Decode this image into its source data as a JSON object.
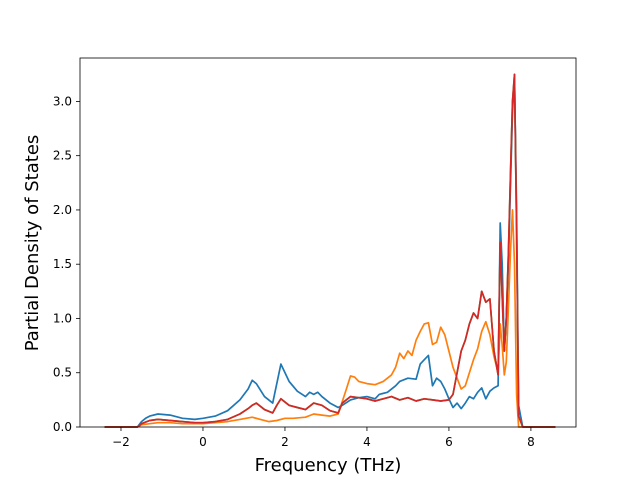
{
  "chart_data": {
    "type": "line",
    "title": "",
    "xlabel": "Frequency (THz)",
    "ylabel": "Partial Density of States",
    "xlim": [
      -3.0,
      9.1
    ],
    "ylim": [
      0.0,
      3.4
    ],
    "xticks": [
      -2,
      0,
      2,
      4,
      6,
      8
    ],
    "xtick_labels": [
      "−2",
      "0",
      "2",
      "4",
      "6",
      "8"
    ],
    "yticks": [
      0.0,
      0.5,
      1.0,
      1.5,
      2.0,
      2.5,
      3.0
    ],
    "ytick_labels": [
      "0.0",
      "0.5",
      "1.0",
      "1.5",
      "2.0",
      "2.5",
      "3.0"
    ],
    "grid": false,
    "legend": "none",
    "series": [
      {
        "color": "#1f77b4",
        "x": [
          -2.4,
          -1.6,
          -1.5,
          -1.4,
          -1.3,
          -1.1,
          -0.8,
          -0.5,
          -0.2,
          0.0,
          0.3,
          0.6,
          0.9,
          1.1,
          1.2,
          1.3,
          1.5,
          1.7,
          1.8,
          1.9,
          2.1,
          2.3,
          2.5,
          2.6,
          2.7,
          2.8,
          2.9,
          3.1,
          3.3,
          3.4,
          3.6,
          3.8,
          4.0,
          4.2,
          4.3,
          4.5,
          4.7,
          4.8,
          5.0,
          5.2,
          5.3,
          5.4,
          5.5,
          5.6,
          5.7,
          5.8,
          5.9,
          6.0,
          6.1,
          6.2,
          6.3,
          6.4,
          6.5,
          6.6,
          6.7,
          6.8,
          6.9,
          7.0,
          7.1,
          7.2,
          7.25,
          7.3,
          7.35,
          7.4,
          7.45,
          7.5,
          7.55,
          7.6,
          7.65,
          7.7,
          7.8,
          8.6
        ],
        "y": [
          0.0,
          0.0,
          0.05,
          0.08,
          0.1,
          0.12,
          0.11,
          0.08,
          0.07,
          0.08,
          0.1,
          0.15,
          0.25,
          0.35,
          0.43,
          0.4,
          0.28,
          0.22,
          0.4,
          0.58,
          0.42,
          0.33,
          0.28,
          0.32,
          0.3,
          0.32,
          0.28,
          0.22,
          0.18,
          0.2,
          0.25,
          0.27,
          0.28,
          0.26,
          0.3,
          0.32,
          0.38,
          0.42,
          0.45,
          0.44,
          0.58,
          0.62,
          0.66,
          0.38,
          0.45,
          0.42,
          0.35,
          0.26,
          0.18,
          0.22,
          0.17,
          0.22,
          0.28,
          0.26,
          0.32,
          0.36,
          0.26,
          0.33,
          0.36,
          0.38,
          1.88,
          1.5,
          0.7,
          1.0,
          1.5,
          2.2,
          2.9,
          3.2,
          2.0,
          0.2,
          0.0,
          0.0
        ]
      },
      {
        "color": "#ff7f0e",
        "x": [
          -2.4,
          -1.6,
          -1.5,
          -1.3,
          -1.1,
          -0.8,
          -0.5,
          -0.2,
          0.0,
          0.3,
          0.6,
          0.9,
          1.2,
          1.4,
          1.6,
          1.8,
          2.0,
          2.2,
          2.5,
          2.7,
          2.9,
          3.1,
          3.3,
          3.5,
          3.6,
          3.7,
          3.8,
          4.0,
          4.2,
          4.4,
          4.6,
          4.7,
          4.8,
          4.9,
          5.0,
          5.1,
          5.2,
          5.3,
          5.4,
          5.5,
          5.6,
          5.7,
          5.8,
          5.9,
          6.0,
          6.1,
          6.2,
          6.3,
          6.4,
          6.5,
          6.6,
          6.7,
          6.8,
          6.9,
          7.0,
          7.1,
          7.2,
          7.25,
          7.3,
          7.35,
          7.4,
          7.45,
          7.5,
          7.55,
          7.6,
          7.65,
          7.7,
          7.8,
          8.6
        ],
        "y": [
          0.0,
          0.0,
          0.02,
          0.03,
          0.04,
          0.04,
          0.03,
          0.03,
          0.03,
          0.04,
          0.05,
          0.07,
          0.09,
          0.07,
          0.05,
          0.06,
          0.08,
          0.08,
          0.09,
          0.12,
          0.11,
          0.1,
          0.12,
          0.35,
          0.47,
          0.46,
          0.42,
          0.4,
          0.39,
          0.42,
          0.48,
          0.55,
          0.68,
          0.63,
          0.7,
          0.66,
          0.8,
          0.88,
          0.95,
          0.96,
          0.76,
          0.78,
          0.92,
          0.85,
          0.7,
          0.55,
          0.45,
          0.35,
          0.38,
          0.5,
          0.62,
          0.72,
          0.88,
          0.97,
          0.85,
          0.65,
          0.5,
          0.95,
          0.75,
          0.48,
          0.6,
          1.1,
          1.6,
          2.0,
          1.5,
          0.3,
          0.0,
          0.0,
          0.0
        ]
      },
      {
        "color": "#2ca02c",
        "x": [
          -2.4,
          -1.6,
          -1.5,
          -1.3,
          -1.1,
          -0.8,
          -0.5,
          -0.2,
          0.0,
          0.3,
          0.6,
          0.9,
          1.1,
          1.2,
          1.3,
          1.5,
          1.7,
          1.8,
          1.9,
          2.1,
          2.3,
          2.5,
          2.7,
          2.9,
          3.1,
          3.3,
          3.4,
          3.6,
          3.8,
          4.0,
          4.2,
          4.4,
          4.6,
          4.8,
          5.0,
          5.2,
          5.4,
          5.6,
          5.8,
          6.0,
          6.1,
          6.2,
          6.3,
          6.4,
          6.5,
          6.6,
          6.7,
          6.8,
          6.9,
          7.0,
          7.1,
          7.2,
          7.25,
          7.3,
          7.35,
          7.4,
          7.45,
          7.5,
          7.55,
          7.6,
          7.65,
          7.7,
          7.8,
          8.6
        ],
        "y": [
          0.0,
          0.0,
          0.03,
          0.06,
          0.07,
          0.06,
          0.05,
          0.04,
          0.04,
          0.05,
          0.07,
          0.12,
          0.17,
          0.2,
          0.22,
          0.16,
          0.13,
          0.2,
          0.26,
          0.2,
          0.18,
          0.16,
          0.22,
          0.2,
          0.15,
          0.13,
          0.22,
          0.28,
          0.27,
          0.26,
          0.24,
          0.26,
          0.28,
          0.25,
          0.27,
          0.24,
          0.26,
          0.25,
          0.24,
          0.25,
          0.3,
          0.5,
          0.7,
          0.8,
          0.95,
          1.05,
          1.0,
          1.25,
          1.15,
          1.18,
          0.7,
          0.48,
          1.7,
          1.2,
          0.7,
          1.0,
          1.6,
          2.3,
          3.0,
          3.25,
          1.8,
          0.1,
          0.0,
          0.0
        ]
      },
      {
        "color": "#d62728",
        "x": [
          -2.4,
          -1.6,
          -1.5,
          -1.3,
          -1.1,
          -0.8,
          -0.5,
          -0.2,
          0.0,
          0.3,
          0.6,
          0.9,
          1.1,
          1.2,
          1.3,
          1.5,
          1.7,
          1.8,
          1.9,
          2.1,
          2.3,
          2.5,
          2.7,
          2.9,
          3.1,
          3.3,
          3.4,
          3.6,
          3.8,
          4.0,
          4.2,
          4.4,
          4.6,
          4.8,
          5.0,
          5.2,
          5.4,
          5.6,
          5.8,
          6.0,
          6.1,
          6.2,
          6.3,
          6.4,
          6.5,
          6.6,
          6.7,
          6.8,
          6.9,
          7.0,
          7.1,
          7.2,
          7.25,
          7.3,
          7.35,
          7.4,
          7.45,
          7.5,
          7.55,
          7.6,
          7.65,
          7.7,
          7.8,
          8.6
        ],
        "y": [
          0.0,
          0.0,
          0.03,
          0.06,
          0.07,
          0.06,
          0.05,
          0.04,
          0.04,
          0.05,
          0.07,
          0.12,
          0.17,
          0.2,
          0.22,
          0.16,
          0.13,
          0.2,
          0.26,
          0.2,
          0.18,
          0.16,
          0.22,
          0.2,
          0.15,
          0.13,
          0.22,
          0.28,
          0.27,
          0.26,
          0.24,
          0.26,
          0.28,
          0.25,
          0.27,
          0.24,
          0.26,
          0.25,
          0.24,
          0.25,
          0.3,
          0.5,
          0.7,
          0.8,
          0.95,
          1.05,
          1.0,
          1.25,
          1.15,
          1.18,
          0.7,
          0.48,
          1.7,
          1.2,
          0.7,
          1.0,
          1.6,
          2.3,
          3.0,
          3.25,
          1.8,
          0.1,
          0.0,
          0.0
        ]
      }
    ]
  }
}
